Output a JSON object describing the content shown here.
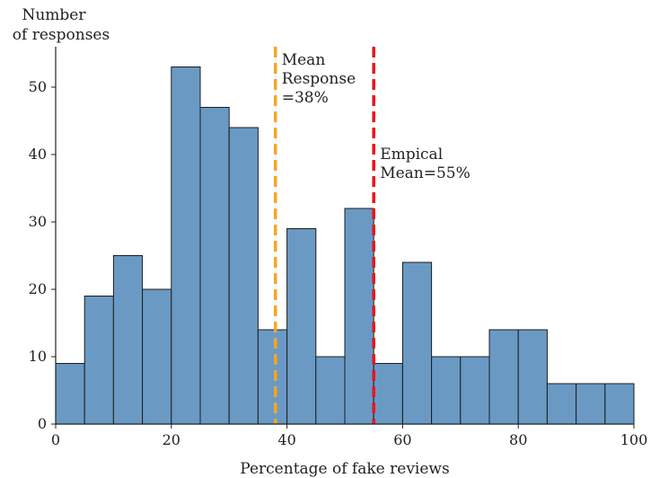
{
  "chart_data": {
    "type": "bar",
    "subtype": "histogram",
    "bin_width": 5,
    "bin_starts": [
      0,
      5,
      10,
      15,
      20,
      25,
      30,
      35,
      40,
      45,
      50,
      55,
      60,
      65,
      70,
      75,
      80,
      85,
      90,
      95
    ],
    "values": [
      9,
      19,
      25,
      20,
      53,
      47,
      44,
      14,
      29,
      10,
      32,
      9,
      24,
      10,
      10,
      14,
      14,
      6,
      6,
      6
    ],
    "xlabel": "Percentage of fake reviews",
    "ylabel_lines": [
      "Number",
      "of responses"
    ],
    "xlim": [
      0,
      100
    ],
    "ylim": [
      0,
      56
    ],
    "xticks": [
      0,
      20,
      40,
      60,
      80,
      100
    ],
    "yticks": [
      0,
      10,
      20,
      30,
      40,
      50
    ],
    "grid": false,
    "bar_color": "#6a9ac4",
    "bar_edge_color": "#1c1c1c",
    "reference_lines": [
      {
        "x": 38,
        "color": "#f5a623",
        "style": "dashed",
        "label_lines": [
          "Mean",
          "Response",
          "=38%"
        ]
      },
      {
        "x": 55,
        "color": "#e8141c",
        "style": "dashed",
        "label_lines": [
          "Empical",
          "Mean=55%"
        ]
      }
    ]
  }
}
